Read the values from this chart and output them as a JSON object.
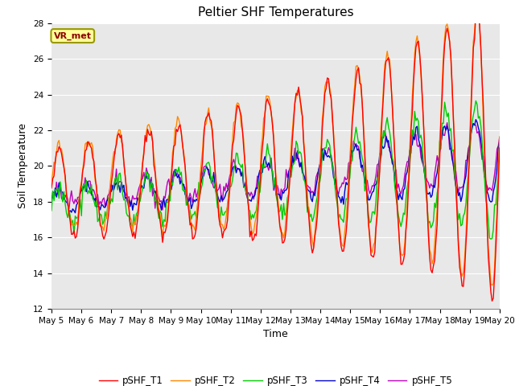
{
  "title": "Peltier SHF Temperatures",
  "xlabel": "Time",
  "ylabel": "Soil Temperature",
  "ylim": [
    12,
    28
  ],
  "yticks": [
    12,
    14,
    16,
    18,
    20,
    22,
    24,
    26,
    28
  ],
  "bg_color": "#e8e8e8",
  "fig_color": "#ffffff",
  "annotation_text": "VR_met",
  "annotation_box_color": "#ffff99",
  "annotation_text_color": "#8b0000",
  "line_colors": {
    "pSHF_T1": "#ff0000",
    "pSHF_T2": "#ff8800",
    "pSHF_T3": "#00cc00",
    "pSHF_T4": "#0000cc",
    "pSHF_T5": "#bb00bb"
  },
  "xtick_labels": [
    "May 5",
    "May 6",
    "May 7",
    "May 8",
    "May 9",
    "May 10",
    "May 11",
    "May 12",
    "May 13",
    "May 14",
    "May 15",
    "May 16",
    "May 17",
    "May 18",
    "May 19",
    "May 20"
  ],
  "num_days": 15,
  "title_fontsize": 11,
  "tick_fontsize": 7.5,
  "label_fontsize": 9
}
